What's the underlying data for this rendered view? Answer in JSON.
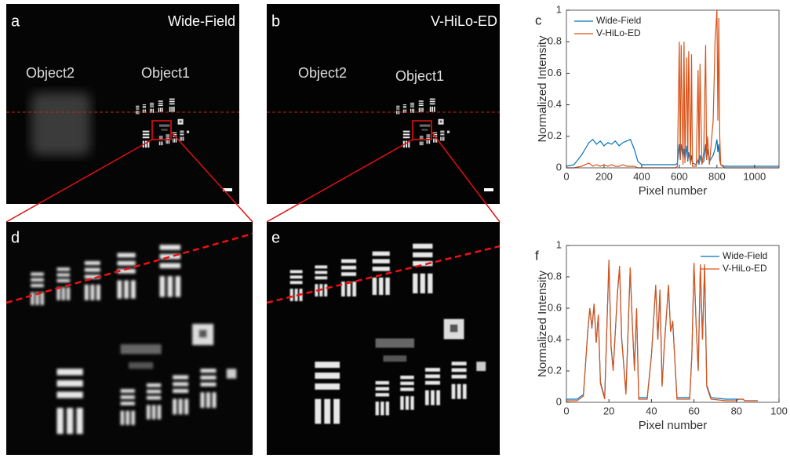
{
  "images": [
    {
      "label": "a",
      "title": "Wide-Field",
      "annotations": [
        "Object2",
        "Object1"
      ]
    },
    {
      "label": "b",
      "title": "V-HiLo-ED",
      "annotations": [
        "Object2",
        "Object1"
      ]
    },
    {
      "label": "d"
    },
    {
      "label": "e"
    }
  ],
  "chart_data": [
    {
      "type": "line",
      "panel_label": "c",
      "xlabel": "Pixel number",
      "ylabel": "Normalized Intensity",
      "x": [
        0,
        40,
        80,
        100,
        120,
        140,
        160,
        180,
        200,
        220,
        240,
        260,
        280,
        300,
        320,
        340,
        360,
        380,
        400,
        450,
        500,
        550,
        580,
        590,
        600,
        605,
        610,
        620,
        625,
        630,
        640,
        645,
        650,
        660,
        665,
        670,
        690,
        700,
        705,
        710,
        720,
        730,
        740,
        745,
        750,
        760,
        780,
        790,
        800,
        805,
        810,
        815,
        820,
        840,
        900,
        1000,
        1130
      ],
      "series": [
        {
          "name": "Wide-Field",
          "color": "#0072bd",
          "values": [
            0.01,
            0.02,
            0.08,
            0.12,
            0.16,
            0.18,
            0.15,
            0.17,
            0.14,
            0.16,
            0.15,
            0.17,
            0.14,
            0.16,
            0.17,
            0.18,
            0.12,
            0.04,
            0.02,
            0.02,
            0.02,
            0.02,
            0.02,
            0.03,
            0.15,
            0.05,
            0.15,
            0.06,
            0.12,
            0.05,
            0.14,
            0.04,
            0.1,
            0.03,
            0.08,
            0.03,
            0.02,
            0.05,
            0.02,
            0.08,
            0.03,
            0.04,
            0.15,
            0.05,
            0.12,
            0.04,
            0.08,
            0.12,
            0.18,
            0.1,
            0.15,
            0.05,
            0.02,
            0.01,
            0.01,
            0.01,
            0.01
          ]
        },
        {
          "name": "V-HiLo-ED",
          "color": "#d95319",
          "values": [
            0,
            0,
            0.01,
            0.02,
            0.03,
            0.01,
            0.02,
            0.01,
            0.02,
            0.01,
            0.02,
            0.01,
            0.01,
            0.02,
            0.01,
            0.01,
            0.01,
            0,
            0,
            0,
            0,
            0,
            0,
            0.01,
            0.8,
            0.05,
            0.78,
            0.02,
            0.8,
            0.03,
            0.7,
            0.05,
            0.74,
            0.02,
            0.72,
            0.01,
            0.01,
            0.62,
            0.03,
            0.66,
            0.02,
            0.1,
            0.78,
            0.05,
            0.2,
            0.02,
            0.3,
            0.8,
            1.0,
            0.3,
            0.95,
            0.2,
            0.02,
            0,
            0,
            0,
            0
          ]
        }
      ],
      "xlim": [
        0,
        1130
      ],
      "xticks": [
        0,
        200,
        400,
        600,
        800,
        1000
      ],
      "ylim": [
        0,
        1
      ],
      "yticks": [
        0,
        0.2,
        0.4,
        0.6,
        0.8,
        1
      ],
      "legend": "upper left"
    },
    {
      "type": "line",
      "panel_label": "f",
      "xlabel": "Pixel number",
      "ylabel": "Normalized Intensity",
      "x": [
        0,
        5,
        8,
        10,
        11,
        12,
        13,
        14,
        15,
        16,
        18,
        20,
        21,
        22,
        24,
        25,
        26,
        28,
        30,
        31,
        32,
        33,
        34,
        38,
        40,
        42,
        43,
        44,
        45,
        46,
        48,
        49,
        50,
        52,
        58,
        59,
        60,
        61,
        62,
        63,
        64,
        65,
        66,
        68,
        75,
        80,
        81,
        83,
        84,
        90
      ],
      "series": [
        {
          "name": "Wide-Field",
          "color": "#0072bd",
          "values": [
            0.02,
            0.02,
            0.05,
            0.44,
            0.6,
            0.47,
            0.62,
            0.38,
            0.55,
            0.13,
            0.03,
            0.9,
            0.36,
            0.21,
            0.69,
            0.86,
            0.41,
            0.06,
            0.85,
            0.5,
            0.21,
            0.59,
            0.03,
            0.03,
            0.3,
            0.74,
            0.4,
            0.71,
            0.11,
            0.35,
            0.74,
            0.45,
            0.51,
            0.03,
            0.03,
            0.3,
            0.88,
            0.5,
            0.21,
            0.87,
            0.4,
            0.87,
            0.11,
            0.03,
            0.02,
            0.02,
            0.02,
            0.02,
            0.01,
            0.01
          ]
        },
        {
          "name": "V-HiLo-ED",
          "color": "#d95319",
          "values": [
            0.01,
            0.01,
            0.04,
            0.45,
            0.6,
            0.48,
            0.63,
            0.38,
            0.56,
            0.12,
            0.02,
            0.91,
            0.35,
            0.2,
            0.7,
            0.87,
            0.4,
            0.05,
            0.86,
            0.5,
            0.2,
            0.6,
            0.02,
            0.02,
            0.3,
            0.75,
            0.4,
            0.72,
            0.1,
            0.35,
            0.75,
            0.45,
            0.52,
            0.02,
            0.02,
            0.3,
            0.89,
            0.5,
            0.2,
            0.88,
            0.4,
            0.88,
            0.1,
            0.02,
            0.01,
            0.01,
            0.02,
            0.02,
            0.01,
            0.01
          ]
        }
      ],
      "xlim": [
        0,
        100
      ],
      "xticks": [
        0,
        20,
        40,
        60,
        80,
        100
      ],
      "ylim": [
        0,
        1
      ],
      "yticks": [
        0,
        0.2,
        0.4,
        0.6,
        0.8,
        1
      ],
      "legend": "upper right"
    }
  ]
}
